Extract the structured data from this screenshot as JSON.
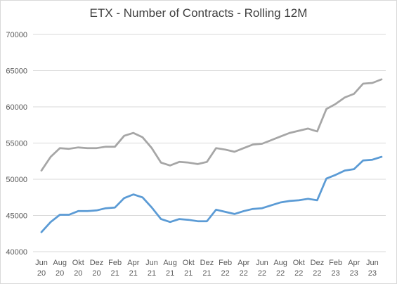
{
  "chart_data": {
    "type": "line",
    "title": "ETX - Number of Contracts - Rolling 12M",
    "xlabel": "",
    "ylabel": "",
    "ylim": [
      40000,
      70000
    ],
    "yticks": [
      "40000",
      "45000",
      "50000",
      "55000",
      "60000",
      "65000",
      "70000"
    ],
    "grid": true,
    "x": [
      "Jun 20",
      "Jul 20",
      "Aug 20",
      "Sep 20",
      "Okt 20",
      "Nov 20",
      "Dez 20",
      "Jan 21",
      "Feb 21",
      "Mar 21",
      "Apr 21",
      "May 21",
      "Jun 21",
      "Jul 21",
      "Aug 21",
      "Sep 21",
      "Okt 21",
      "Nov 21",
      "Dez 21",
      "Jan 22",
      "Feb 22",
      "Mar 22",
      "Apr 22",
      "May 22",
      "Jun 22",
      "Jul 22",
      "Aug 22",
      "Sep 22",
      "Okt 22",
      "Nov 22",
      "Dez 22",
      "Jan 23",
      "Feb 23",
      "Mar 23",
      "Apr 23",
      "May 23",
      "Jun 23",
      "Jul 23"
    ],
    "xtick_labels": [
      {
        "month": "Jun",
        "year": "20"
      },
      {
        "month": "Aug",
        "year": "20"
      },
      {
        "month": "Okt",
        "year": "20"
      },
      {
        "month": "Dez",
        "year": "20"
      },
      {
        "month": "Feb",
        "year": "21"
      },
      {
        "month": "Apr",
        "year": "21"
      },
      {
        "month": "Jun",
        "year": "21"
      },
      {
        "month": "Aug",
        "year": "21"
      },
      {
        "month": "Okt",
        "year": "21"
      },
      {
        "month": "Dez",
        "year": "21"
      },
      {
        "month": "Feb",
        "year": "22"
      },
      {
        "month": "Apr",
        "year": "22"
      },
      {
        "month": "Jun",
        "year": "22"
      },
      {
        "month": "Aug",
        "year": "22"
      },
      {
        "month": "Okt",
        "year": "22"
      },
      {
        "month": "Dez",
        "year": "22"
      },
      {
        "month": "Feb",
        "year": "23"
      },
      {
        "month": "Apr",
        "year": "23"
      },
      {
        "month": "Jun",
        "year": "23"
      }
    ],
    "series": [
      {
        "color": "#a6a6a6",
        "values": [
          51200,
          53100,
          54300,
          54200,
          54400,
          54300,
          54300,
          54500,
          54500,
          56000,
          56400,
          55800,
          54300,
          52300,
          51900,
          52400,
          52300,
          52100,
          52400,
          54300,
          54100,
          53800,
          54300,
          54800,
          54900,
          55400,
          55900,
          56400,
          56700,
          57000,
          56600,
          59700,
          60400,
          61300,
          61800,
          63200,
          63300,
          63800
        ]
      },
      {
        "color": "#5b9bd5",
        "values": [
          42700,
          44100,
          45100,
          45100,
          45600,
          45600,
          45700,
          46000,
          46100,
          47400,
          47900,
          47500,
          46100,
          44500,
          44100,
          44500,
          44400,
          44200,
          44200,
          45800,
          45500,
          45200,
          45600,
          45900,
          46000,
          46400,
          46800,
          47000,
          47100,
          47300,
          47100,
          50100,
          50600,
          51200,
          51400,
          52600,
          52700,
          53100
        ]
      }
    ]
  }
}
